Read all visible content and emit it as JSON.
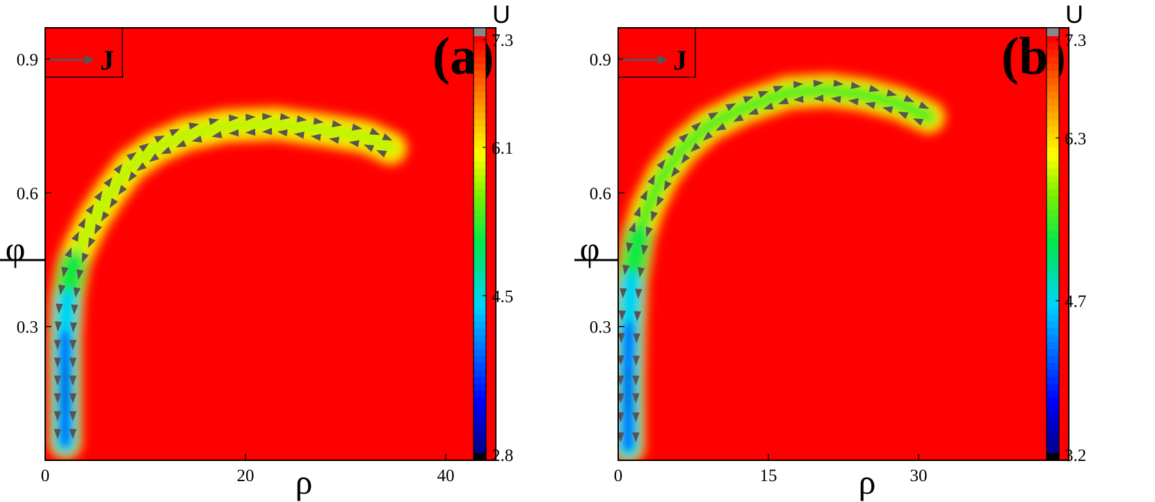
{
  "chart_data": [
    {
      "type": "heatmap",
      "panel_label": "(a)",
      "xlabel": "ρ",
      "ylabel": "φ",
      "x_ticks": [
        "0",
        "20",
        "40"
      ],
      "x_tick_values": [
        0,
        20,
        40
      ],
      "y_ticks": [
        "0.3",
        "0.6",
        "0.9"
      ],
      "y_tick_values": [
        0.3,
        0.6,
        0.9
      ],
      "xlim": [
        0,
        45
      ],
      "ylim": [
        0,
        0.97
      ],
      "legend_label": "J",
      "colorbar": {
        "title": "U",
        "ticks": [
          "2.8",
          "4.5",
          "6.1",
          "7.3"
        ],
        "tick_values": [
          2.8,
          4.5,
          6.1,
          7.3
        ],
        "min": 2.8,
        "max": 7.3
      },
      "background_value": 7.3,
      "valley": {
        "vertical_branch": [
          [
            2,
            0.04
          ],
          [
            2,
            0.12
          ],
          [
            2,
            0.2
          ],
          [
            2,
            0.28
          ],
          [
            2.2,
            0.36
          ],
          [
            2.8,
            0.44
          ]
        ],
        "curved_branch": [
          [
            3.5,
            0.48
          ],
          [
            4.8,
            0.54
          ],
          [
            6.5,
            0.6
          ],
          [
            8.5,
            0.66
          ],
          [
            11,
            0.7
          ],
          [
            14,
            0.73
          ],
          [
            18,
            0.75
          ],
          [
            23,
            0.755
          ],
          [
            28,
            0.74
          ],
          [
            32,
            0.725
          ],
          [
            34.5,
            0.7
          ]
        ],
        "min_value": 2.8,
        "ridge_value": 6.1
      }
    },
    {
      "type": "heatmap",
      "panel_label": "(b)",
      "xlabel": "ρ",
      "ylabel": "φ",
      "x_ticks": [
        "0",
        "15",
        "30"
      ],
      "x_tick_values": [
        0,
        15,
        30
      ],
      "y_ticks": [
        "0.3",
        "0.6",
        "0.9"
      ],
      "y_tick_values": [
        0.3,
        0.6,
        0.9
      ],
      "xlim": [
        0,
        45
      ],
      "ylim": [
        0,
        0.97
      ],
      "legend_label": "J",
      "colorbar": {
        "title": "U",
        "ticks": [
          "3.2",
          "4.7",
          "6.3",
          "7.3"
        ],
        "tick_values": [
          3.2,
          4.7,
          6.3,
          7.3
        ],
        "min": 3.2,
        "max": 7.3
      },
      "background_value": 7.3,
      "valley": {
        "vertical_branch": [
          [
            1,
            0.03
          ],
          [
            1,
            0.12
          ],
          [
            1,
            0.2
          ],
          [
            1.1,
            0.3
          ],
          [
            1.3,
            0.4
          ],
          [
            2,
            0.5
          ]
        ],
        "curved_branch": [
          [
            3,
            0.57
          ],
          [
            4.5,
            0.64
          ],
          [
            6.5,
            0.7
          ],
          [
            9,
            0.75
          ],
          [
            12.5,
            0.79
          ],
          [
            17,
            0.825
          ],
          [
            21,
            0.83
          ],
          [
            24.5,
            0.82
          ],
          [
            28,
            0.8
          ],
          [
            31,
            0.77
          ]
        ],
        "min_value": 3.2,
        "ridge_value": 6.0
      }
    }
  ]
}
